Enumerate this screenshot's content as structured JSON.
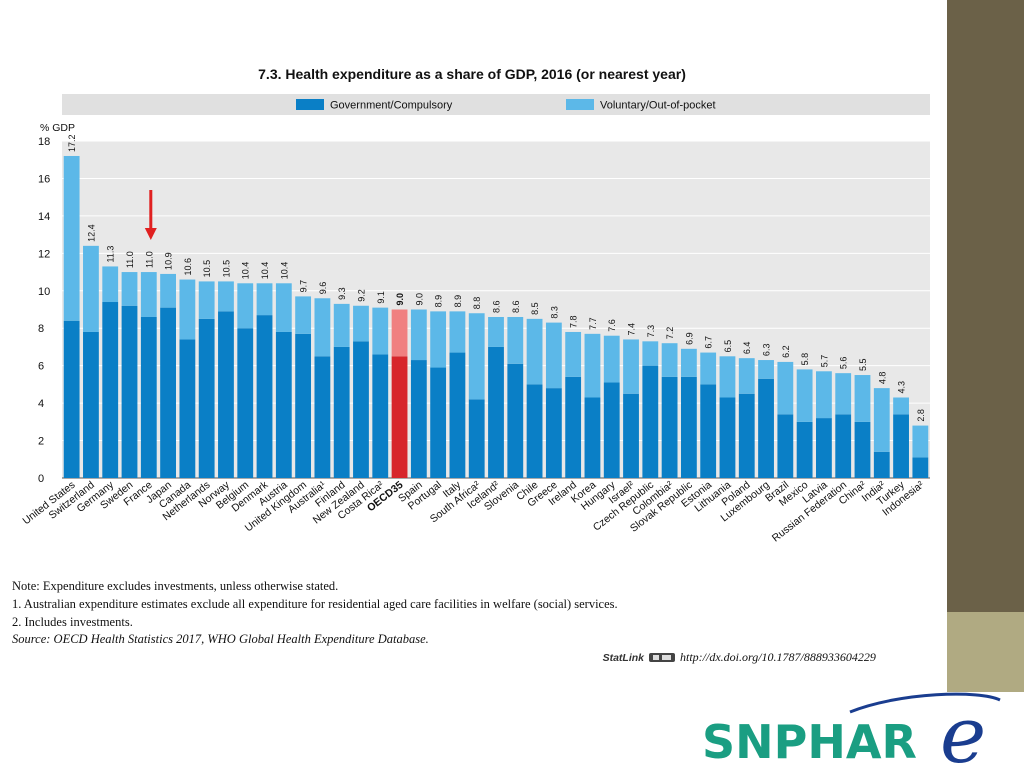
{
  "slide": {
    "accent_dark": "#6b6148",
    "accent_light": "#b0aa82"
  },
  "chart_data": {
    "type": "bar",
    "stacked": true,
    "title": "7.3. Health expenditure as a share of GDP, 2016 (or nearest year)",
    "ylabel": "% GDP",
    "ylim": [
      0,
      18
    ],
    "yticks": [
      0,
      2,
      4,
      6,
      8,
      10,
      12,
      14,
      16,
      18
    ],
    "grid": true,
    "legend_position": "top",
    "highlight_category": "France",
    "highlight_marker": "red-arrow",
    "categories": [
      "United States",
      "Switzerland",
      "Germany",
      "Sweden",
      "France",
      "Japan",
      "Canada",
      "Netherlands",
      "Norway",
      "Belgium",
      "Denmark",
      "Austria",
      "United Kingdom",
      "Australia¹",
      "Finland",
      "New Zealand",
      "Costa Rica²",
      "OECD35",
      "Spain",
      "Portugal",
      "Italy",
      "South Africa²",
      "Iceland²",
      "Slovenia",
      "Chile",
      "Greece",
      "Ireland",
      "Korea",
      "Hungary",
      "Israel²",
      "Czech Republic",
      "Colombia²",
      "Slovak Republic",
      "Estonia",
      "Lithuania",
      "Poland",
      "Luxembourg",
      "Brazil",
      "Mexico",
      "Latvia",
      "Russian Federation",
      "China²",
      "India²",
      "Turkey",
      "Indonesia²"
    ],
    "totals": [
      17.2,
      12.4,
      11.3,
      11.0,
      11.0,
      10.9,
      10.6,
      10.5,
      10.5,
      10.4,
      10.4,
      10.4,
      9.7,
      9.6,
      9.3,
      9.2,
      9.1,
      9.0,
      9.0,
      8.9,
      8.9,
      8.8,
      8.6,
      8.6,
      8.5,
      8.3,
      7.8,
      7.7,
      7.6,
      7.4,
      7.3,
      7.2,
      6.9,
      6.7,
      6.5,
      6.4,
      6.3,
      6.2,
      5.8,
      5.7,
      5.6,
      5.5,
      4.8,
      4.3,
      2.8
    ],
    "total_labels": [
      "17.2",
      "12.4",
      "11.3",
      "11.0",
      "11.0",
      "10.9",
      "10.6",
      "10.5",
      "10.5",
      "10.4",
      "10.4",
      "10.4",
      "9.7",
      "9.6",
      "9.3",
      "9.2",
      "9.1",
      "9.0",
      "9.0",
      "8.9",
      "8.9",
      "8.8",
      "8.6",
      "8.6",
      "8.5",
      "8.3",
      "7.8",
      "7.7",
      "7.6",
      "7.4",
      "7.3",
      "7.2",
      "6.9",
      "6.7",
      "6.5",
      "6.4",
      "6.3",
      "6.2",
      "5.8",
      "5.7",
      "5.6",
      "5.5",
      "4.8",
      "4.3",
      "2.8"
    ],
    "series": [
      {
        "name": "Government/Compulsory",
        "color": "#0a7fc6",
        "highlight_color": "#d7262b",
        "values": [
          8.4,
          7.8,
          9.4,
          9.2,
          8.6,
          9.1,
          7.4,
          8.5,
          8.9,
          8.0,
          8.7,
          7.8,
          7.7,
          6.5,
          7.0,
          7.3,
          6.6,
          6.5,
          6.3,
          5.9,
          6.7,
          4.2,
          7.0,
          6.1,
          5.0,
          4.8,
          5.4,
          4.3,
          5.1,
          4.5,
          6.0,
          5.4,
          5.4,
          5.0,
          4.3,
          4.5,
          5.3,
          3.4,
          3.0,
          3.2,
          3.4,
          3.0,
          1.4,
          3.4,
          1.1
        ]
      },
      {
        "name": "Voluntary/Out-of-pocket",
        "color": "#5cb8e8",
        "highlight_color": "#f08080",
        "values": [
          8.8,
          4.6,
          1.9,
          1.8,
          2.4,
          1.8,
          3.2,
          2.0,
          1.6,
          2.4,
          1.7,
          2.6,
          2.0,
          3.1,
          2.3,
          1.9,
          2.5,
          2.5,
          2.7,
          3.0,
          2.2,
          4.6,
          1.6,
          2.5,
          3.5,
          3.5,
          2.4,
          3.4,
          2.5,
          2.9,
          1.3,
          1.8,
          1.5,
          1.7,
          2.2,
          1.9,
          1.0,
          2.8,
          2.8,
          2.5,
          2.2,
          2.5,
          3.4,
          0.9,
          1.7
        ]
      }
    ]
  },
  "notes": {
    "note": "Note: Expenditure excludes investments, unless otherwise stated.",
    "note1": "1.  Australian expenditure estimates exclude all expenditure for residential aged care facilities in welfare (social) services.",
    "note2": "2.  Includes investments.",
    "source_label": "Source:",
    "source_text": " OECD Health Statistics 2017, WHO Global Health Expenditure Database.",
    "statlink_label": "StatLink",
    "statlink_url": "http://dx.doi.org/10.1787/888933604229"
  },
  "logo": {
    "text": "SNPHAR",
    "script_letter": "e",
    "color": "#1a9e82",
    "swoosh_color": "#1a3d8f"
  }
}
